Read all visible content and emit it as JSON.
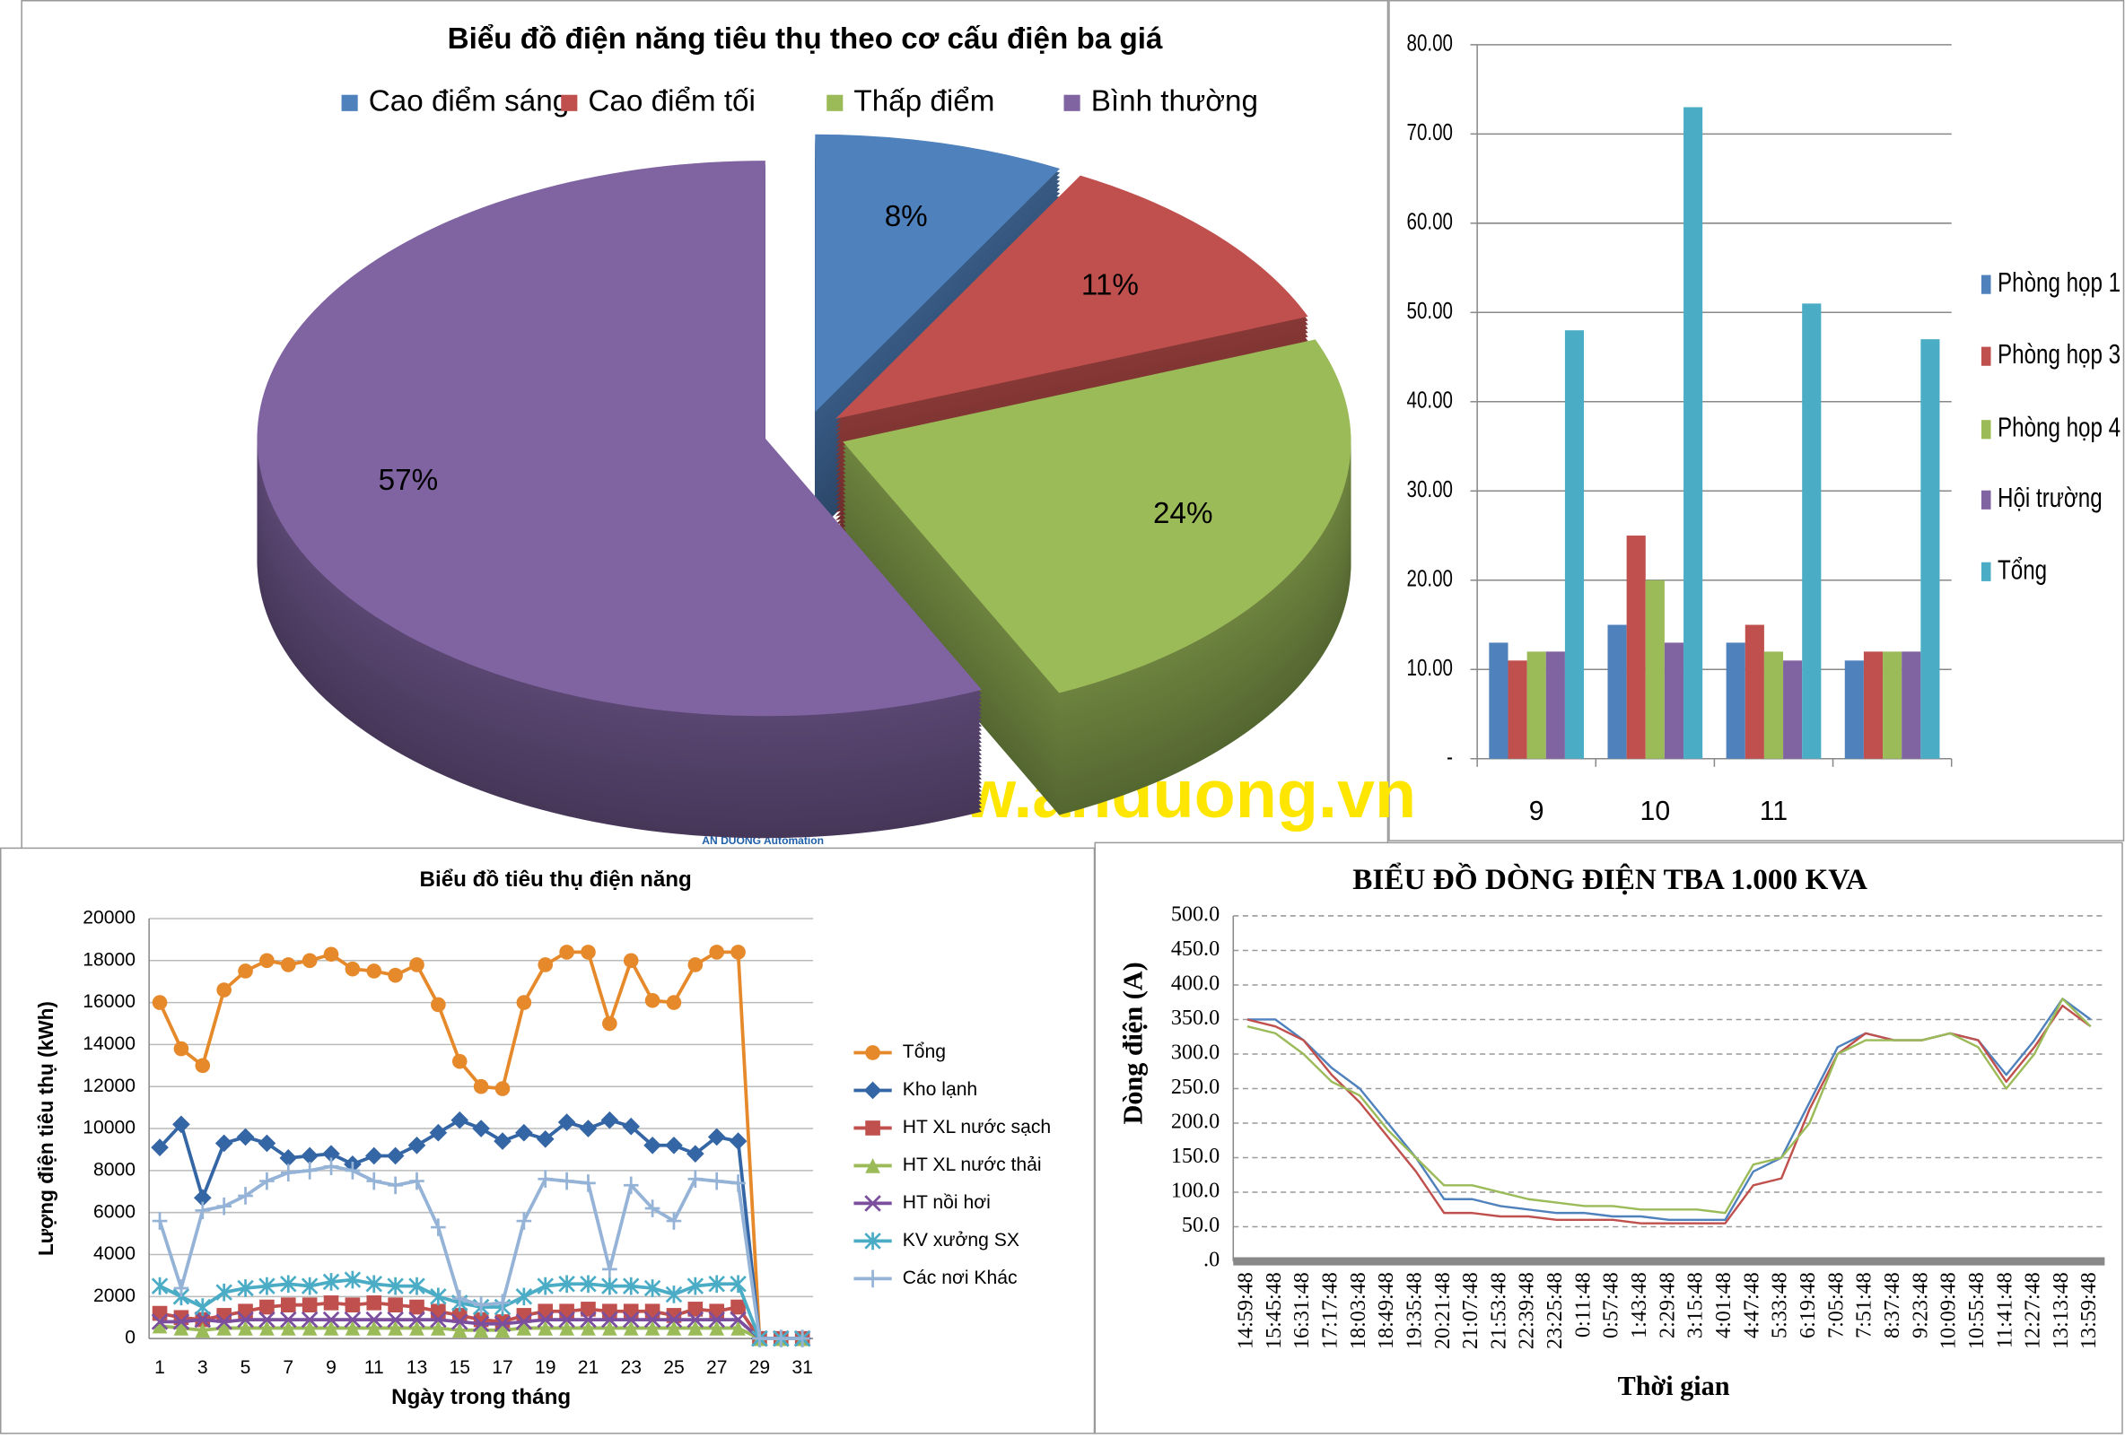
{
  "watermark": {
    "url": "www.anduong.vn",
    "company": "AN DUONG Automation"
  },
  "chart_data": [
    {
      "type": "pie",
      "title": "Biểu đồ điện năng tiêu thụ theo cơ cấu điện ba giá",
      "categories": [
        "Cao điểm sáng",
        "Cao điểm tối",
        "Thấp điểm",
        "Bình thường"
      ],
      "values": [
        8,
        11,
        24,
        57
      ],
      "value_labels": [
        "8%",
        "11%",
        "24%",
        "57%"
      ],
      "colors": [
        "#4f81bd",
        "#c0504d",
        "#9bbb59",
        "#8064a2"
      ],
      "legend": "top"
    },
    {
      "type": "bar",
      "categories": [
        "9",
        "10",
        "11",
        null
      ],
      "series": [
        {
          "name": "Phòng họp 1",
          "color": "#4f81bd",
          "values": [
            13,
            15,
            13,
            11
          ]
        },
        {
          "name": "Phòng họp 3",
          "color": "#c0504d",
          "values": [
            11,
            25,
            15,
            12
          ]
        },
        {
          "name": "Phòng họp 4",
          "color": "#9bbb59",
          "values": [
            12,
            20,
            12,
            12
          ]
        },
        {
          "name": "Hội trường",
          "color": "#8064a2",
          "values": [
            12,
            13,
            11,
            12
          ]
        },
        {
          "name": "Tổng",
          "color": "#4bacc6",
          "values": [
            48,
            73,
            51,
            47
          ]
        }
      ],
      "ylim": [
        0,
        80
      ],
      "yticks": [
        {
          "value": 0,
          "label": "-"
        },
        {
          "value": 10,
          "label": "10.00"
        },
        {
          "value": 20,
          "label": "20.00"
        },
        {
          "value": 30,
          "label": "30.00"
        },
        {
          "value": 40,
          "label": "40.00"
        },
        {
          "value": 50,
          "label": "50.00"
        },
        {
          "value": 60,
          "label": "60.00"
        },
        {
          "value": 70,
          "label": "70.00"
        },
        {
          "value": 80,
          "label": "80.00"
        }
      ],
      "grid": true,
      "legend": "right"
    },
    {
      "type": "line",
      "title": "Biểu đồ tiêu thụ điện năng",
      "xlabel": "Ngày trong tháng",
      "ylabel": "Lượng điện tiêu thụ (kWh)",
      "categories": [
        "1",
        null,
        "3",
        null,
        "5",
        null,
        "7",
        null,
        "9",
        null,
        "11",
        null,
        "13",
        null,
        "15",
        null,
        "17",
        null,
        "19",
        null,
        "21",
        null,
        "23",
        null,
        "25",
        null,
        "27",
        null,
        "29",
        null,
        "31"
      ],
      "series": [
        {
          "name": "Tổng",
          "color": "#e6892b",
          "marker": "circle",
          "values": [
            16000,
            13800,
            13000,
            16600,
            17500,
            18000,
            17800,
            18000,
            18300,
            17600,
            17500,
            17300,
            17800,
            15900,
            13200,
            12000,
            11900,
            16000,
            17800,
            18400,
            18400,
            15000,
            18000,
            16100,
            16000,
            17800,
            18400,
            18400,
            0,
            0,
            0
          ]
        },
        {
          "name": "Kho lạnh",
          "color": "#3465a4",
          "marker": "diamond",
          "values": [
            9100,
            10200,
            6700,
            9300,
            9600,
            9300,
            8600,
            8700,
            8800,
            8300,
            8700,
            8700,
            9200,
            9800,
            10400,
            10000,
            9400,
            9800,
            9500,
            10300,
            10000,
            10400,
            10100,
            9200,
            9200,
            8800,
            9600,
            9400,
            0,
            0,
            0
          ]
        },
        {
          "name": "HT  XL nước sạch",
          "color": "#c0504d",
          "marker": "square",
          "values": [
            1200,
            1000,
            900,
            1100,
            1300,
            1500,
            1600,
            1600,
            1700,
            1600,
            1700,
            1600,
            1500,
            1300,
            1100,
            900,
            800,
            1100,
            1300,
            1300,
            1400,
            1300,
            1300,
            1300,
            1100,
            1400,
            1300,
            1500,
            0,
            0,
            0
          ]
        },
        {
          "name": "HT  XL nước thải",
          "color": "#9bbb59",
          "marker": "triangle",
          "values": [
            600,
            500,
            400,
            500,
            500,
            500,
            500,
            500,
            500,
            500,
            500,
            500,
            500,
            500,
            400,
            400,
            400,
            500,
            500,
            500,
            500,
            500,
            500,
            500,
            500,
            500,
            500,
            500,
            0,
            0,
            0
          ]
        },
        {
          "name": "HT  nồi hơi",
          "color": "#7b4f9d",
          "marker": "x",
          "values": [
            800,
            800,
            900,
            800,
            900,
            900,
            900,
            900,
            900,
            900,
            900,
            900,
            900,
            900,
            800,
            700,
            700,
            800,
            900,
            900,
            900,
            900,
            900,
            900,
            900,
            900,
            900,
            900,
            0,
            0,
            0
          ]
        },
        {
          "name": "KV xưởng SX",
          "color": "#4bacc6",
          "marker": "asterisk",
          "values": [
            2500,
            2000,
            1500,
            2200,
            2400,
            2500,
            2600,
            2500,
            2700,
            2800,
            2600,
            2500,
            2500,
            2000,
            1700,
            1500,
            1500,
            2000,
            2500,
            2600,
            2600,
            2500,
            2500,
            2400,
            2100,
            2500,
            2600,
            2600,
            0,
            0,
            0
          ]
        },
        {
          "name": "Các nơi Khác",
          "color": "#95b3d7",
          "marker": "plus",
          "values": [
            5600,
            2400,
            6100,
            6300,
            6800,
            7500,
            7900,
            8000,
            8200,
            8000,
            7500,
            7300,
            7500,
            5300,
            1900,
            1600,
            1700,
            5600,
            7600,
            7500,
            7400,
            3300,
            7300,
            6200,
            5600,
            7600,
            7500,
            7400,
            0,
            0,
            0
          ]
        }
      ],
      "ylim": [
        0,
        20000
      ],
      "yticks": [
        0,
        2000,
        4000,
        6000,
        8000,
        10000,
        12000,
        14000,
        16000,
        18000,
        20000
      ],
      "grid": true,
      "legend": "right"
    },
    {
      "type": "line",
      "title": "BIỂU ĐỒ DÒNG ĐIỆN TBA 1.000 KVA",
      "xlabel": "Thời gian",
      "ylabel": "Dòng điện (A)",
      "categories": [
        "14:59:48",
        "15:45:48",
        "16:31:48",
        "17:17:48",
        "18:03:48",
        "18:49:48",
        "19:35:48",
        "20:21:48",
        "21:07:48",
        "21:53:48",
        "22:39:48",
        "23:25:48",
        "0:11:48",
        "0:57:48",
        "1:43:48",
        "2:29:48",
        "3:15:48",
        "4:01:48",
        "4:47:48",
        "5:33:48",
        "6:19:48",
        "7:05:48",
        "7:51:48",
        "8:37:48",
        "9:23:48",
        "10:09:48",
        "10:55:48",
        "11:41:48",
        "12:27:48",
        "13:13:48",
        "13:59:48"
      ],
      "series": [
        {
          "color": "#4f81bd",
          "values": [
            350,
            350,
            320,
            280,
            250,
            200,
            150,
            90,
            90,
            80,
            75,
            70,
            70,
            65,
            65,
            60,
            60,
            60,
            130,
            150,
            230,
            310,
            330,
            320,
            320,
            330,
            320,
            270,
            320,
            380,
            350
          ]
        },
        {
          "color": "#c0504d",
          "values": [
            350,
            340,
            320,
            270,
            230,
            180,
            130,
            70,
            70,
            65,
            65,
            60,
            60,
            60,
            55,
            55,
            55,
            55,
            110,
            120,
            220,
            300,
            330,
            320,
            320,
            330,
            320,
            260,
            310,
            370,
            340
          ]
        },
        {
          "color": "#9bbb59",
          "values": [
            340,
            330,
            300,
            260,
            240,
            190,
            150,
            110,
            110,
            100,
            90,
            85,
            80,
            80,
            75,
            75,
            75,
            70,
            140,
            150,
            200,
            300,
            320,
            320,
            320,
            330,
            310,
            250,
            300,
            380,
            340
          ]
        }
      ],
      "ylim": [
        0,
        500
      ],
      "yticks": [
        {
          "value": 0,
          "label": ".0"
        },
        {
          "value": 50,
          "label": "50.0"
        },
        {
          "value": 100,
          "label": "100.0"
        },
        {
          "value": 150,
          "label": "150.0"
        },
        {
          "value": 200,
          "label": "200.0"
        },
        {
          "value": 250,
          "label": "250.0"
        },
        {
          "value": 300,
          "label": "300.0"
        },
        {
          "value": 350,
          "label": "350.0"
        },
        {
          "value": 400,
          "label": "400.0"
        },
        {
          "value": 450,
          "label": "450.0"
        },
        {
          "value": 500,
          "label": "500.0"
        }
      ],
      "grid": true
    }
  ]
}
